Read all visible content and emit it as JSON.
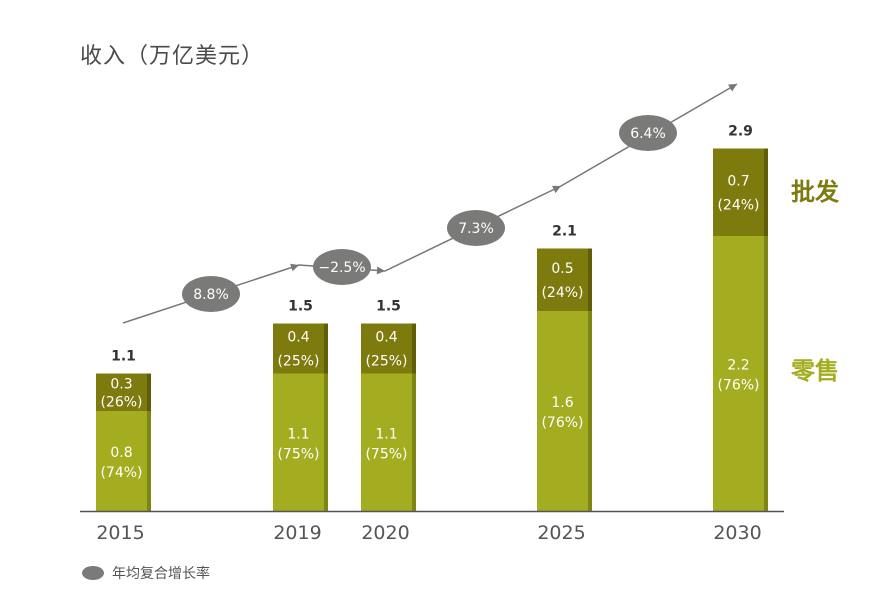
{
  "chart_data": {
    "type": "bar",
    "stacked": true,
    "title": "收入（万亿美元）",
    "categories": [
      "2015",
      "2019",
      "2020",
      "2025",
      "2030"
    ],
    "series": [
      {
        "name": "零售",
        "values": [
          0.8,
          1.1,
          1.1,
          1.6,
          2.2
        ],
        "value_labels": [
          "0.8",
          "1.1",
          "1.1",
          "1.6",
          "2.2"
        ],
        "share_labels": [
          "(74%)",
          "(75%)",
          "(75%)",
          "(76%)",
          "(76%)"
        ]
      },
      {
        "name": "批发",
        "values": [
          0.3,
          0.4,
          0.4,
          0.5,
          0.7
        ],
        "value_labels": [
          "0.3",
          "0.4",
          "0.4",
          "0.5",
          "0.7"
        ],
        "share_labels": [
          "(26%)",
          "(25%)",
          "(25%)",
          "(24%)",
          "(24%)"
        ]
      }
    ],
    "totals": [
      "1.1",
      "1.5",
      "1.5",
      "2.1",
      "2.9"
    ],
    "cagr": [
      {
        "from": "2015",
        "to": "2019",
        "label": "8.8%"
      },
      {
        "from": "2019",
        "to": "2020",
        "label": "−2.5%"
      },
      {
        "from": "2020",
        "to": "2025",
        "label": "7.3%"
      },
      {
        "from": "2025",
        "to": "2030",
        "label": "6.4%"
      }
    ],
    "series_labels": {
      "wholesale": "批发",
      "retail": "零售"
    },
    "legend": "年均复合增长率",
    "ylim": [
      0,
      3.0
    ],
    "colors": {
      "retail": "#a3ad1f",
      "retail_edge": "#7d8515",
      "wholesale": "#7d7a0e",
      "wholesale_edge": "#5f5d08",
      "bubble": "#7a7a78",
      "arrow": "#777777",
      "axis": "#555555",
      "year_text": "#555555",
      "wholesale_label": "#7d7a0e",
      "retail_label": "#a3ad1f"
    }
  }
}
